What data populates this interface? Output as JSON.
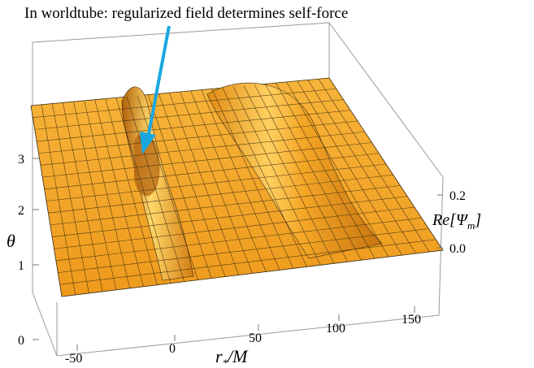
{
  "annotation": {
    "text": "In worldtube: regularized field determines self-force",
    "arrow_color": "#1aa7e0"
  },
  "axes": {
    "theta_label": "θ",
    "theta_ticks": [
      "0",
      "1",
      "2",
      "3"
    ],
    "r_label_main": "r",
    "r_label_sub": "*",
    "r_label_tail": "/M",
    "r_ticks": [
      "-50",
      "0",
      "50",
      "100",
      "150"
    ],
    "re_label": "Re[Ψ",
    "re_label_sub": "m",
    "re_label_tail": "]",
    "re_ticks": [
      "0.2",
      "0.0"
    ]
  },
  "colors": {
    "surface_light": "#ffc24a",
    "surface_mid": "#f0a020",
    "surface_dark": "#c06e08",
    "mesh": "#3a2a10",
    "box": "#8a8a8a"
  }
}
